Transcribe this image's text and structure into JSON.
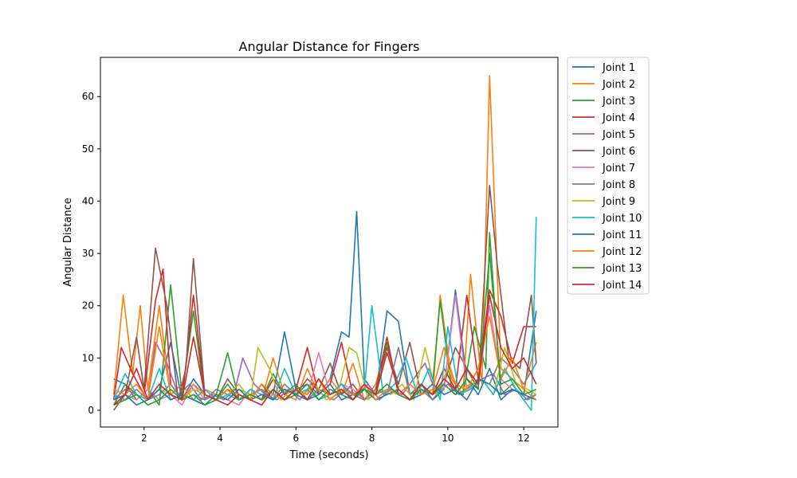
{
  "chart_data": {
    "type": "line",
    "title": "Angular Distance for Fingers",
    "xlabel": "Time (seconds)",
    "ylabel": "Angular Distance",
    "xlim": [
      0.85,
      12.9
    ],
    "ylim": [
      -3.2,
      67.5
    ],
    "xticks": [
      2,
      4,
      6,
      8,
      10,
      12
    ],
    "yticks": [
      0,
      10,
      20,
      30,
      40,
      50,
      60
    ],
    "grid": false,
    "legend_position": "outside-right-top",
    "colors": [
      "#1f77b4",
      "#ff7f0e",
      "#2ca02c",
      "#d62728",
      "#9467bd",
      "#8c564b",
      "#e377c2",
      "#7f7f7f",
      "#bcbd22",
      "#17becf",
      "#1f77b4",
      "#ff7f0e",
      "#2ca02c",
      "#d62728"
    ],
    "series": [
      {
        "name": "Joint 1",
        "x": [
          1.2,
          1.5,
          1.8,
          2.1,
          2.4,
          2.7,
          3.0,
          3.3,
          3.6,
          3.9,
          4.2,
          4.5,
          4.8,
          5.1,
          5.4,
          5.7,
          6.0,
          6.3,
          6.6,
          6.9,
          7.2,
          7.4,
          7.6,
          7.8,
          8.1,
          8.4,
          8.7,
          9.0,
          9.3,
          9.6,
          9.9,
          10.2,
          10.5,
          10.8,
          11.1,
          11.4,
          11.7,
          12.0,
          12.33
        ],
        "values": [
          6,
          5,
          3,
          2,
          4,
          13,
          2,
          6,
          3,
          2,
          4,
          3,
          2,
          5,
          3,
          15,
          4,
          5,
          3,
          6,
          15,
          14,
          38,
          6,
          3,
          19,
          17,
          3,
          5,
          2,
          4,
          23,
          6,
          3,
          8,
          2,
          4,
          3,
          19
        ]
      },
      {
        "name": "Joint 2",
        "x": [
          1.2,
          1.45,
          1.7,
          1.9,
          2.1,
          2.4,
          2.7,
          3.0,
          3.3,
          3.6,
          3.9,
          4.2,
          4.5,
          4.8,
          5.1,
          5.4,
          5.7,
          6.0,
          6.3,
          6.6,
          6.9,
          7.2,
          7.5,
          7.8,
          8.1,
          8.4,
          8.7,
          9.0,
          9.3,
          9.6,
          9.8,
          10.1,
          10.4,
          10.6,
          10.9,
          11.1,
          11.4,
          11.7,
          12.0,
          12.33
        ],
        "values": [
          3,
          22,
          7,
          20,
          4,
          20,
          3,
          5,
          2,
          4,
          3,
          2,
          4,
          3,
          2,
          10,
          3,
          2,
          8,
          3,
          6,
          3,
          9,
          2,
          5,
          13,
          3,
          2,
          4,
          3,
          22,
          6,
          3,
          26,
          5,
          64,
          8,
          6,
          4,
          13
        ]
      },
      {
        "name": "Joint 3",
        "x": [
          1.2,
          1.5,
          1.8,
          2.1,
          2.4,
          2.7,
          3.0,
          3.3,
          3.6,
          3.9,
          4.2,
          4.5,
          4.8,
          5.1,
          5.4,
          5.7,
          6.0,
          6.3,
          6.6,
          6.9,
          7.2,
          7.5,
          7.8,
          8.1,
          8.4,
          8.7,
          9.0,
          9.3,
          9.6,
          9.8,
          10.1,
          10.4,
          10.7,
          11.0,
          11.1,
          11.4,
          11.7,
          12.0,
          12.33
        ],
        "values": [
          1,
          5,
          2,
          4,
          1,
          24,
          3,
          19,
          2,
          3,
          11,
          2,
          4,
          2,
          7,
          3,
          5,
          2,
          4,
          3,
          5,
          2,
          4,
          3,
          13,
          4,
          2,
          3,
          5,
          21,
          4,
          3,
          16,
          8,
          34,
          3,
          5,
          2,
          3
        ]
      },
      {
        "name": "Joint 4",
        "x": [
          1.2,
          1.4,
          1.7,
          2.0,
          2.3,
          2.5,
          2.7,
          3.0,
          3.3,
          3.6,
          3.9,
          4.2,
          4.5,
          4.8,
          5.1,
          5.4,
          5.7,
          6.0,
          6.3,
          6.6,
          6.9,
          7.2,
          7.5,
          7.8,
          8.1,
          8.4,
          8.7,
          9.0,
          9.3,
          9.6,
          9.9,
          10.2,
          10.5,
          10.8,
          11.1,
          11.4,
          11.7,
          12.0,
          12.33
        ],
        "values": [
          2,
          12,
          7,
          3,
          21,
          27,
          5,
          2,
          22,
          3,
          2,
          4,
          2,
          3,
          2,
          6,
          3,
          4,
          12,
          3,
          5,
          13,
          3,
          2,
          4,
          14,
          3,
          2,
          5,
          3,
          8,
          4,
          22,
          6,
          23,
          18,
          9,
          16,
          16
        ]
      },
      {
        "name": "Joint 5",
        "x": [
          1.2,
          1.5,
          1.8,
          2.1,
          2.3,
          2.6,
          2.9,
          3.2,
          3.5,
          3.8,
          4.1,
          4.4,
          4.6,
          4.9,
          5.2,
          5.5,
          5.8,
          6.1,
          6.4,
          6.7,
          7.0,
          7.3,
          7.6,
          7.9,
          8.2,
          8.5,
          8.8,
          9.1,
          9.4,
          9.7,
          10.0,
          10.3,
          10.6,
          10.9,
          11.2,
          11.5,
          11.8,
          12.1,
          12.33
        ],
        "values": [
          2,
          4,
          3,
          2,
          13,
          9,
          3,
          5,
          2,
          3,
          2,
          4,
          10,
          5,
          3,
          2,
          4,
          2,
          5,
          3,
          2,
          4,
          3,
          5,
          2,
          4,
          3,
          6,
          9,
          3,
          5,
          3,
          4,
          6,
          7,
          3,
          4,
          2,
          3
        ]
      },
      {
        "name": "Joint 6",
        "x": [
          1.2,
          1.5,
          1.8,
          2.0,
          2.3,
          2.6,
          2.9,
          3.1,
          3.3,
          3.6,
          3.9,
          4.2,
          4.5,
          4.8,
          5.1,
          5.4,
          5.7,
          6.0,
          6.3,
          6.6,
          6.9,
          7.2,
          7.5,
          7.8,
          8.1,
          8.4,
          8.7,
          9.0,
          9.3,
          9.6,
          9.9,
          10.2,
          10.5,
          10.8,
          11.1,
          11.3,
          11.6,
          11.9,
          12.2,
          12.33
        ],
        "values": [
          0,
          3,
          14,
          4,
          31,
          20,
          2,
          8,
          29,
          3,
          2,
          6,
          3,
          2,
          5,
          2,
          4,
          3,
          6,
          4,
          9,
          3,
          5,
          2,
          4,
          12,
          5,
          13,
          3,
          4,
          5,
          12,
          8,
          4,
          43,
          28,
          10,
          8,
          22,
          9
        ]
      },
      {
        "name": "Joint 7",
        "x": [
          1.2,
          1.5,
          1.8,
          2.1,
          2.4,
          2.7,
          3.0,
          3.3,
          3.6,
          3.9,
          4.2,
          4.5,
          4.8,
          5.1,
          5.4,
          5.7,
          6.0,
          6.3,
          6.6,
          6.9,
          7.2,
          7.5,
          7.8,
          8.1,
          8.4,
          8.7,
          9.0,
          9.3,
          9.6,
          9.9,
          10.2,
          10.5,
          10.8,
          11.1,
          11.4,
          11.7,
          12.0,
          12.33
        ],
        "values": [
          1,
          3,
          2,
          4,
          2,
          3,
          1,
          5,
          2,
          3,
          2,
          1,
          4,
          2,
          3,
          2,
          4,
          3,
          11,
          3,
          5,
          4,
          2,
          3,
          4,
          3,
          2,
          5,
          3,
          4,
          22,
          4,
          5,
          20,
          6,
          4,
          3,
          2
        ]
      },
      {
        "name": "Joint 8",
        "x": [
          1.2,
          1.5,
          1.8,
          2.1,
          2.4,
          2.7,
          3.0,
          3.3,
          3.6,
          3.9,
          4.2,
          4.5,
          4.8,
          5.1,
          5.4,
          5.7,
          6.0,
          6.3,
          6.6,
          6.9,
          7.2,
          7.5,
          7.8,
          8.1,
          8.4,
          8.7,
          9.0,
          9.3,
          9.6,
          9.9,
          10.2,
          10.5,
          10.8,
          11.1,
          11.4,
          11.7,
          12.0,
          12.33
        ],
        "values": [
          3,
          2,
          4,
          2,
          3,
          5,
          2,
          3,
          2,
          4,
          3,
          2,
          3,
          4,
          2,
          5,
          3,
          2,
          4,
          3,
          5,
          3,
          2,
          4,
          3,
          12,
          3,
          4,
          2,
          5,
          3,
          4,
          6,
          5,
          10,
          8,
          5,
          9
        ]
      },
      {
        "name": "Joint 9",
        "x": [
          1.2,
          1.5,
          1.8,
          2.1,
          2.4,
          2.7,
          3.0,
          3.3,
          3.6,
          3.9,
          4.2,
          4.5,
          4.8,
          5.0,
          5.3,
          5.6,
          5.9,
          6.2,
          6.5,
          6.8,
          7.1,
          7.4,
          7.6,
          7.9,
          8.2,
          8.5,
          8.8,
          9.1,
          9.4,
          9.7,
          10.0,
          10.3,
          10.6,
          10.9,
          11.2,
          11.5,
          11.8,
          12.1,
          12.33
        ],
        "values": [
          1,
          2,
          3,
          2,
          4,
          3,
          2,
          4,
          3,
          2,
          3,
          5,
          2,
          12,
          8,
          2,
          4,
          3,
          5,
          2,
          3,
          12,
          11,
          2,
          4,
          3,
          5,
          2,
          12,
          3,
          8,
          4,
          5,
          6,
          3,
          12,
          5,
          4,
          3
        ]
      },
      {
        "name": "Joint 10",
        "x": [
          1.2,
          1.5,
          1.8,
          2.1,
          2.4,
          2.7,
          3.0,
          3.3,
          3.6,
          3.9,
          4.2,
          4.5,
          4.8,
          5.1,
          5.4,
          5.7,
          6.0,
          6.3,
          6.6,
          6.9,
          7.2,
          7.5,
          7.8,
          8.0,
          8.3,
          8.6,
          8.9,
          9.2,
          9.5,
          9.8,
          10.0,
          10.3,
          10.6,
          10.9,
          11.2,
          11.5,
          11.8,
          12.0,
          12.2,
          12.33
        ],
        "values": [
          2,
          7,
          3,
          2,
          8,
          2,
          3,
          2,
          4,
          2,
          3,
          2,
          4,
          3,
          2,
          8,
          3,
          4,
          2,
          3,
          5,
          2,
          4,
          20,
          3,
          5,
          10,
          3,
          8,
          2,
          16,
          3,
          4,
          6,
          3,
          8,
          4,
          2,
          0,
          37
        ]
      },
      {
        "name": "Joint 11",
        "x": [
          1.2,
          1.5,
          1.8,
          2.1,
          2.4,
          2.7,
          3.0,
          3.3,
          3.6,
          3.9,
          4.2,
          4.5,
          4.8,
          5.1,
          5.4,
          5.7,
          6.0,
          6.3,
          6.6,
          6.9,
          7.2,
          7.5,
          7.8,
          8.1,
          8.4,
          8.7,
          9.0,
          9.3,
          9.6,
          9.9,
          10.2,
          10.5,
          10.8,
          11.1,
          11.4,
          11.7,
          12.0,
          12.33
        ],
        "values": [
          2,
          3,
          1,
          2,
          4,
          2,
          3,
          2,
          1,
          3,
          2,
          4,
          2,
          3,
          2,
          4,
          3,
          2,
          3,
          5,
          2,
          3,
          4,
          2,
          3,
          4,
          2,
          3,
          5,
          3,
          4,
          2,
          6,
          5,
          3,
          4,
          3,
          2
        ]
      },
      {
        "name": "Joint 12",
        "x": [
          1.2,
          1.5,
          1.8,
          2.1,
          2.4,
          2.7,
          3.0,
          3.3,
          3.6,
          3.9,
          4.2,
          4.5,
          4.8,
          5.1,
          5.4,
          5.7,
          6.0,
          6.3,
          6.6,
          6.9,
          7.2,
          7.5,
          7.8,
          8.1,
          8.4,
          8.7,
          9.0,
          9.3,
          9.6,
          9.9,
          10.2,
          10.5,
          10.8,
          11.1,
          11.4,
          11.7,
          12.0,
          12.33
        ],
        "values": [
          4,
          3,
          5,
          2,
          16,
          3,
          2,
          5,
          3,
          2,
          4,
          3,
          2,
          5,
          3,
          2,
          4,
          3,
          6,
          2,
          4,
          3,
          5,
          2,
          4,
          3,
          5,
          3,
          4,
          12,
          5,
          4,
          8,
          18,
          6,
          10,
          4,
          2
        ]
      },
      {
        "name": "Joint 13",
        "x": [
          1.2,
          1.5,
          1.8,
          2.1,
          2.4,
          2.7,
          3.0,
          3.3,
          3.6,
          3.9,
          4.2,
          4.5,
          4.8,
          5.1,
          5.4,
          5.7,
          6.0,
          6.3,
          6.6,
          6.9,
          7.2,
          7.5,
          7.8,
          8.1,
          8.4,
          8.7,
          9.0,
          9.3,
          9.6,
          9.9,
          10.2,
          10.5,
          10.8,
          11.1,
          11.4,
          11.7,
          12.0,
          12.33
        ],
        "values": [
          1,
          2,
          3,
          1,
          2,
          4,
          2,
          3,
          1,
          2,
          5,
          2,
          3,
          2,
          4,
          2,
          3,
          5,
          2,
          4,
          3,
          2,
          4,
          3,
          5,
          3,
          2,
          4,
          3,
          5,
          3,
          6,
          4,
          30,
          5,
          6,
          3,
          4
        ]
      },
      {
        "name": "Joint 14",
        "x": [
          1.2,
          1.5,
          1.8,
          2.1,
          2.4,
          2.7,
          3.0,
          3.3,
          3.6,
          3.9,
          4.2,
          4.5,
          4.8,
          5.1,
          5.4,
          5.7,
          6.0,
          6.3,
          6.6,
          6.9,
          7.2,
          7.5,
          7.8,
          8.1,
          8.4,
          8.7,
          9.0,
          9.3,
          9.6,
          9.9,
          10.2,
          10.5,
          10.8,
          11.1,
          11.4,
          11.7,
          12.0,
          12.33
        ],
        "values": [
          1,
          3,
          8,
          2,
          5,
          3,
          2,
          14,
          3,
          2,
          1,
          3,
          2,
          1,
          4,
          2,
          4,
          2,
          6,
          3,
          4,
          2,
          5,
          3,
          11,
          4,
          2,
          5,
          3,
          6,
          4,
          8,
          5,
          22,
          12,
          8,
          10,
          5
        ]
      }
    ]
  }
}
